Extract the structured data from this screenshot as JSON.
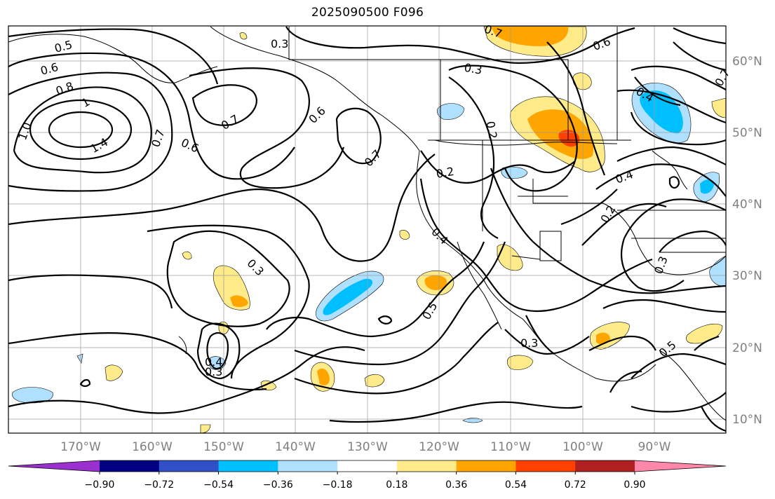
{
  "title": "2025090500 F096",
  "map": {
    "longitude_labels": [
      "170°W",
      "160°W",
      "150°W",
      "140°W",
      "130°W",
      "120°W",
      "110°W",
      "100°W",
      "90°W"
    ],
    "latitude_labels": [
      "60°N",
      "50°N",
      "40°N",
      "30°N",
      "20°N",
      "10°N"
    ],
    "grid": true,
    "contour_labels": [
      "0.5",
      "0.6",
      "0.8",
      "1",
      "1.4",
      "1.0",
      "0.7",
      "0.7",
      "0.6",
      "0.3",
      "0.6",
      "0.7",
      "0.6",
      "0.7",
      "0.3",
      "0.7",
      "0.4",
      "0.2",
      "0.2",
      "0.4",
      "0.2",
      "0.4",
      "0.3",
      "0.3",
      "0.5",
      "0.3",
      "0.5",
      "0.4",
      "0.3"
    ]
  },
  "colorbar": {
    "tick_labels": [
      "−0.90",
      "−0.72",
      "−0.54",
      "−0.36",
      "−0.18",
      "0.18",
      "0.36",
      "0.54",
      "0.72",
      "0.90"
    ],
    "colors": [
      "#9b30d0",
      "#000080",
      "#3050c8",
      "#00bfff",
      "#b0e0ff",
      "#ffffff",
      "#ffeb8a",
      "#ffa500",
      "#ff4000",
      "#b02020",
      "#ff88aa"
    ]
  }
}
